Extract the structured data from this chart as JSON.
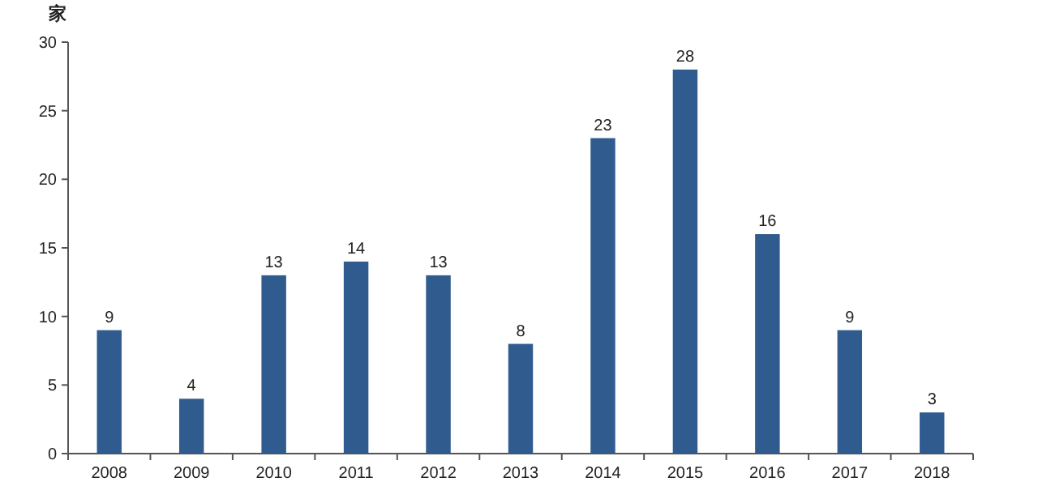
{
  "chart_data": {
    "type": "bar",
    "ylabel": "家",
    "categories": [
      "2008",
      "2009",
      "2010",
      "2011",
      "2012",
      "2013",
      "2014",
      "2015",
      "2016",
      "2017",
      "2018"
    ],
    "values": [
      9,
      4,
      13,
      14,
      13,
      8,
      23,
      28,
      16,
      9,
      3
    ],
    "color": "#2f5b8f",
    "ylim": [
      0,
      30
    ],
    "yticks": [
      0,
      5,
      10,
      15,
      20,
      25,
      30
    ],
    "data_labels": true,
    "grid": false
  }
}
